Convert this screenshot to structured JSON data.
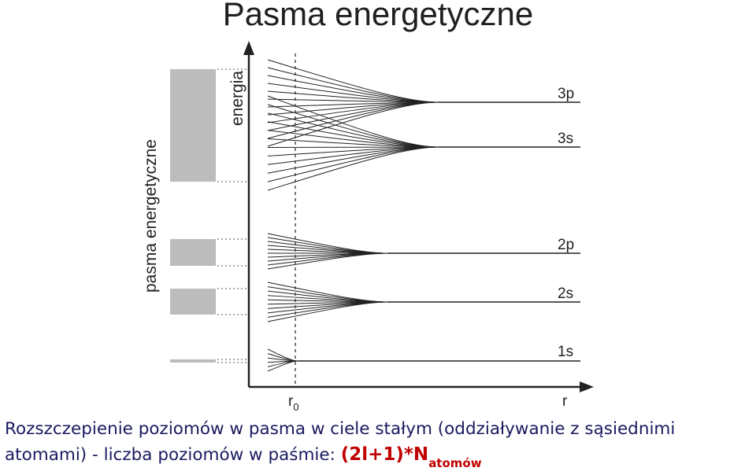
{
  "title": "Pasma energetyczne",
  "axis": {
    "y_label": "energia",
    "x_label": "r",
    "r0_main": "r",
    "r0_sub": "0"
  },
  "bands_label": "pasma energetyczne",
  "levels": [
    {
      "name": "3p",
      "lines": 12
    },
    {
      "name": "3s",
      "lines": 12
    },
    {
      "name": "2p",
      "lines": 10
    },
    {
      "name": "2s",
      "lines": 10
    },
    {
      "name": "1s",
      "lines": 6
    }
  ],
  "colors": {
    "band_fill": "#bcbcbc",
    "line": "#222222",
    "caption": "#1a1a60",
    "formula": "#c00000"
  },
  "caption": {
    "line1": "Rozszczepienie poziomów w pasma w ciele stałym (oddziaływanie z sąsiednimi",
    "line2": "atomami) - liczba poziomów w paśmie: ",
    "formula_main": "(2l+1)*N",
    "formula_sub": "atomów"
  }
}
